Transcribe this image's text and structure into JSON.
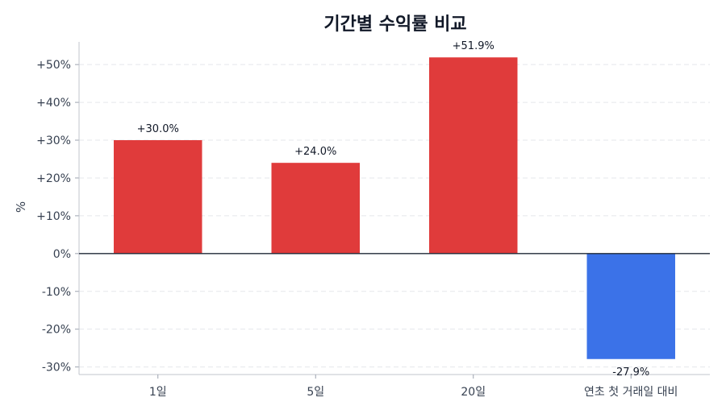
{
  "chart_data": {
    "type": "bar",
    "title": "기간별 수익률 비교",
    "xlabel": "",
    "ylabel": "%",
    "categories": [
      "1일",
      "5일",
      "20일",
      "연초 첫 거래일 대비"
    ],
    "values": [
      30.0,
      24.0,
      51.9,
      -27.9
    ],
    "data_labels": [
      "+30.0%",
      "+24.0%",
      "+51.9%",
      "-27.9%"
    ],
    "colors": [
      "#e03b3b",
      "#e03b3b",
      "#e03b3b",
      "#3b72e8"
    ],
    "ylim": [
      -32,
      56
    ],
    "yticks": [
      -30,
      -20,
      -10,
      0,
      10,
      20,
      30,
      40,
      50
    ],
    "ytick_labels": [
      "-30%",
      "-20%",
      "-10%",
      "0%",
      "+10%",
      "+20%",
      "+30%",
      "+40%",
      "+50%"
    ],
    "grid": true,
    "legend": false
  }
}
